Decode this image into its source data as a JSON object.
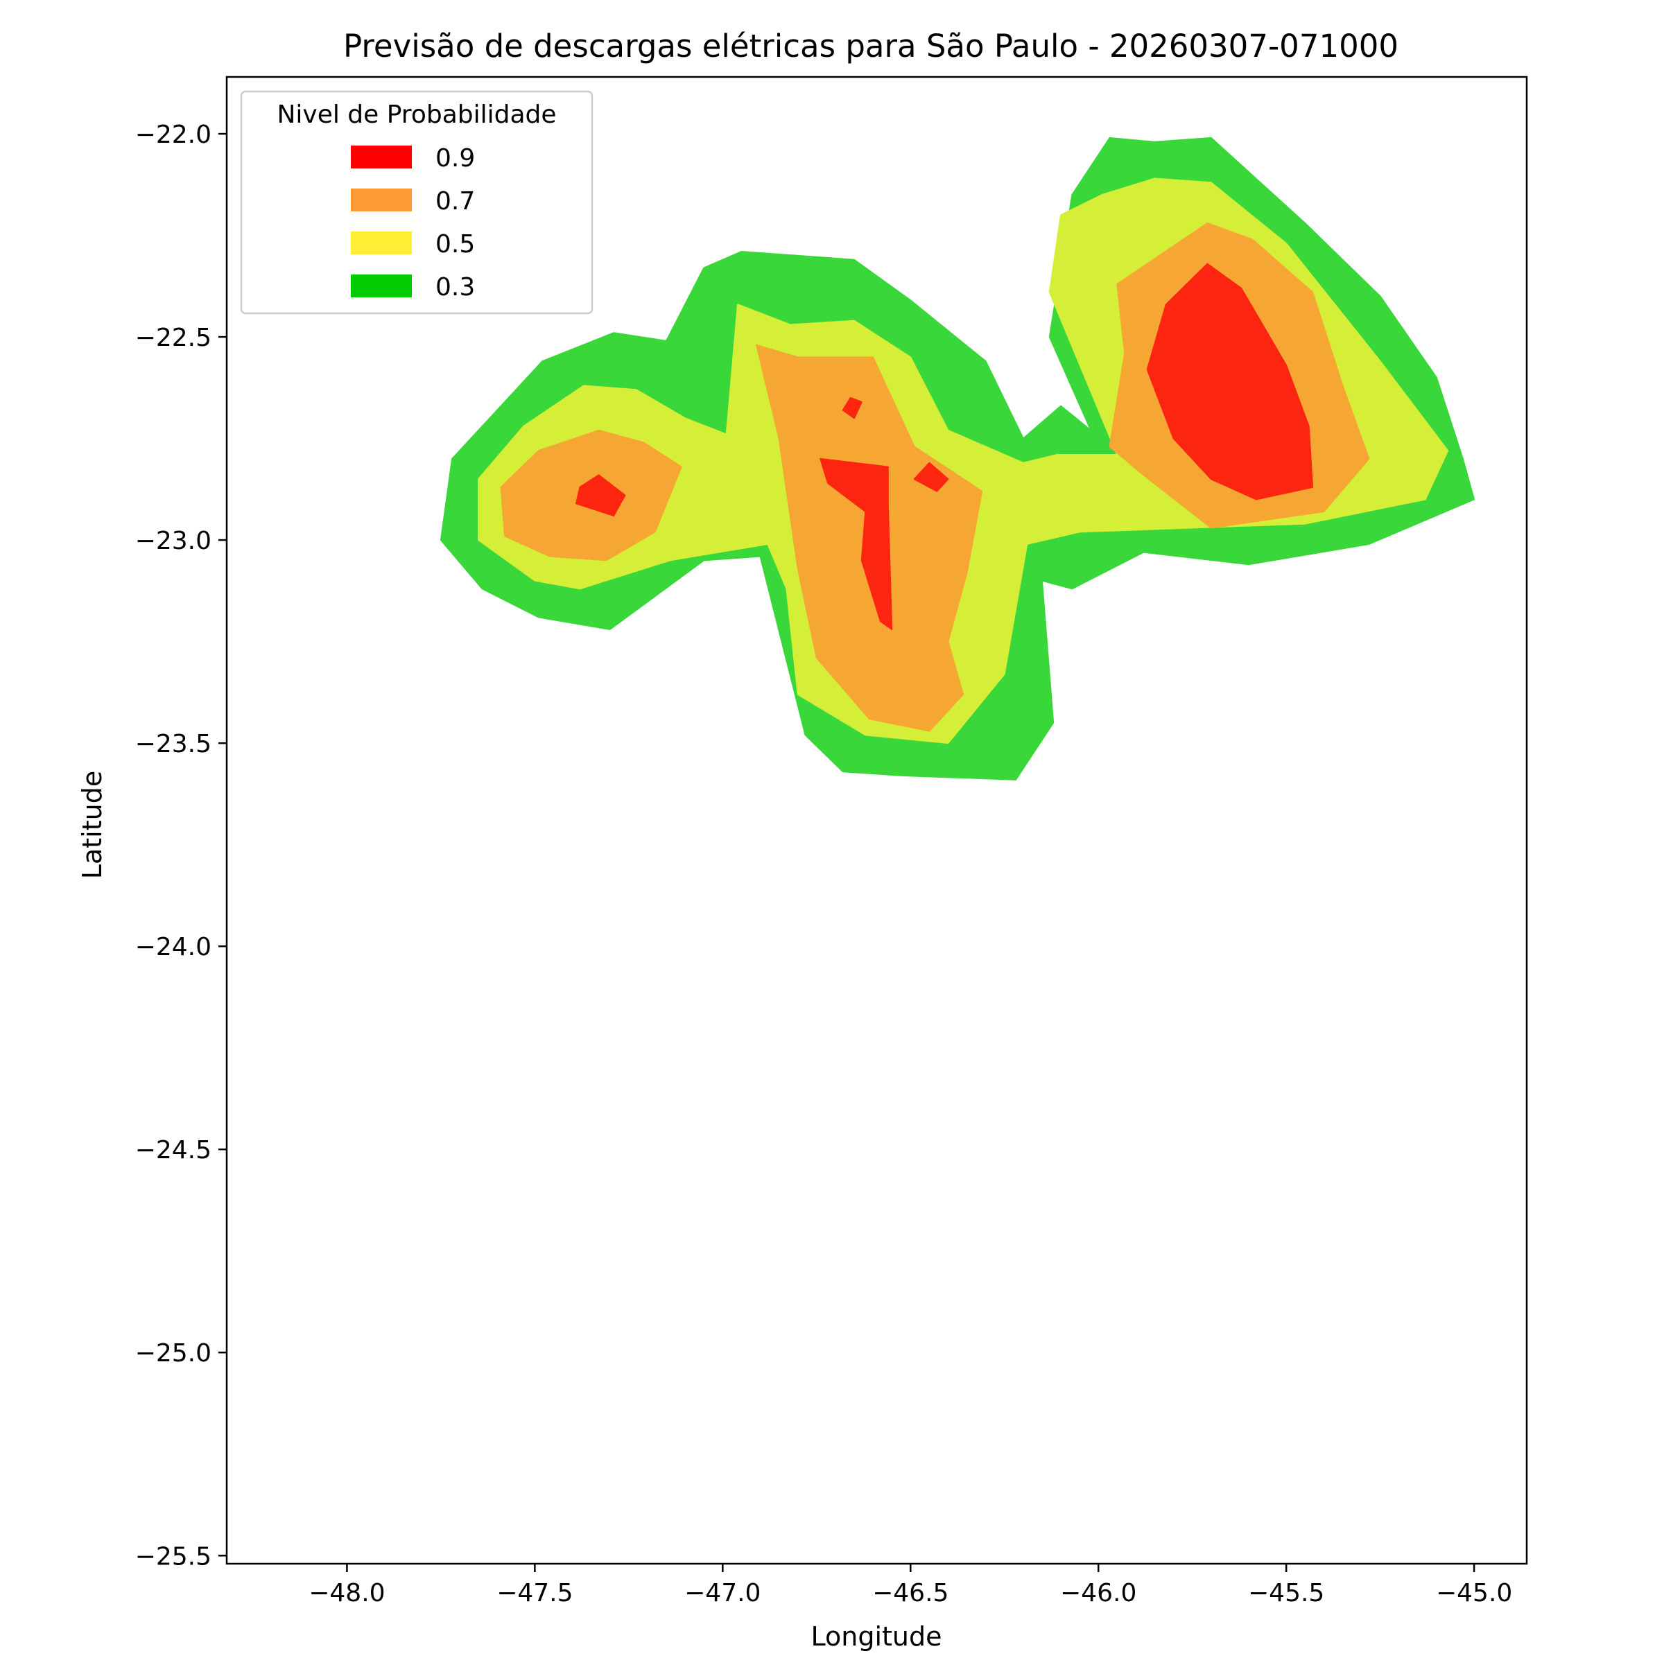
{
  "chart_data": {
    "type": "contour",
    "title": "Previsão de descargas elétricas para São Paulo - 20260307-071000",
    "xlabel": "Longitude",
    "ylabel": "Latitude",
    "xlim": [
      -48.32,
      -44.86
    ],
    "ylim": [
      -25.52,
      -21.86
    ],
    "xticks": [
      -48.0,
      -47.5,
      -47.0,
      -46.5,
      -46.0,
      -45.5,
      -45.0
    ],
    "xtick_labels": [
      "−48.0",
      "−47.5",
      "−47.0",
      "−46.5",
      "−46.0",
      "−45.5",
      "−45.0"
    ],
    "yticks": [
      -22.0,
      -22.5,
      -23.0,
      -23.5,
      -24.0,
      -24.5,
      -25.0,
      -25.5
    ],
    "ytick_labels": [
      "−22.0",
      "−22.5",
      "−23.0",
      "−23.5",
      "−24.0",
      "−24.5",
      "−25.0",
      "−25.5"
    ],
    "grid": false,
    "legend": {
      "title": "Nivel de Probabilidade",
      "placement": "top-left",
      "entries": [
        {
          "label": "0.9",
          "color": "#ff0000"
        },
        {
          "label": "0.7",
          "color": "#ff9933"
        },
        {
          "label": "0.5",
          "color": "#ffee33"
        },
        {
          "label": "0.3",
          "color": "#00cc00"
        }
      ]
    },
    "levels": [
      {
        "level": 0.3,
        "color": "#39d739",
        "regions": [
          [
            [
              -47.29,
              -22.49
            ],
            [
              -47.15,
              -22.51
            ],
            [
              -47.05,
              -22.33
            ],
            [
              -46.95,
              -22.29
            ],
            [
              -46.65,
              -22.31
            ],
            [
              -46.5,
              -22.41
            ],
            [
              -46.3,
              -22.56
            ],
            [
              -46.2,
              -22.75
            ],
            [
              -46.1,
              -22.67
            ],
            [
              -46.02,
              -22.73
            ],
            [
              -46.13,
              -22.5
            ],
            [
              -46.07,
              -22.15
            ],
            [
              -45.97,
              -22.01
            ],
            [
              -45.85,
              -22.02
            ],
            [
              -45.7,
              -22.01
            ],
            [
              -45.45,
              -22.22
            ],
            [
              -45.25,
              -22.4
            ],
            [
              -45.1,
              -22.6
            ],
            [
              -45.03,
              -22.8
            ],
            [
              -45.0,
              -22.9
            ],
            [
              -45.28,
              -23.01
            ],
            [
              -45.6,
              -23.06
            ],
            [
              -45.88,
              -23.03
            ],
            [
              -46.07,
              -23.12
            ],
            [
              -46.15,
              -23.1
            ],
            [
              -46.12,
              -23.45
            ],
            [
              -46.22,
              -23.59
            ],
            [
              -46.52,
              -23.58
            ],
            [
              -46.68,
              -23.57
            ],
            [
              -46.78,
              -23.48
            ],
            [
              -46.9,
              -23.04
            ],
            [
              -47.05,
              -23.05
            ],
            [
              -47.3,
              -23.22
            ],
            [
              -47.49,
              -23.19
            ],
            [
              -47.64,
              -23.12
            ],
            [
              -47.75,
              -23.0
            ],
            [
              -47.72,
              -22.8
            ],
            [
              -47.6,
              -22.68
            ],
            [
              -47.48,
              -22.56
            ]
          ]
        ]
      },
      {
        "level": 0.5,
        "color": "#d5ee37",
        "regions": [
          [
            [
              -47.37,
              -22.62
            ],
            [
              -47.23,
              -22.63
            ],
            [
              -47.1,
              -22.7
            ],
            [
              -46.99,
              -22.74
            ],
            [
              -46.96,
              -22.42
            ],
            [
              -46.82,
              -22.47
            ],
            [
              -46.65,
              -22.46
            ],
            [
              -46.5,
              -22.55
            ],
            [
              -46.4,
              -22.73
            ],
            [
              -46.2,
              -22.81
            ],
            [
              -46.11,
              -22.79
            ],
            [
              -45.95,
              -22.79
            ],
            [
              -46.13,
              -22.39
            ],
            [
              -46.1,
              -22.2
            ],
            [
              -45.99,
              -22.15
            ],
            [
              -45.85,
              -22.11
            ],
            [
              -45.7,
              -22.12
            ],
            [
              -45.5,
              -22.27
            ],
            [
              -45.25,
              -22.56
            ],
            [
              -45.07,
              -22.78
            ],
            [
              -45.13,
              -22.9
            ],
            [
              -45.45,
              -22.96
            ],
            [
              -45.75,
              -22.97
            ],
            [
              -46.05,
              -22.98
            ],
            [
              -46.19,
              -23.01
            ],
            [
              -46.25,
              -23.33
            ],
            [
              -46.4,
              -23.5
            ],
            [
              -46.62,
              -23.48
            ],
            [
              -46.8,
              -23.38
            ],
            [
              -46.83,
              -23.12
            ],
            [
              -46.88,
              -23.01
            ],
            [
              -47.14,
              -23.05
            ],
            [
              -47.38,
              -23.12
            ],
            [
              -47.5,
              -23.1
            ],
            [
              -47.65,
              -23.0
            ],
            [
              -47.65,
              -22.85
            ],
            [
              -47.53,
              -22.72
            ]
          ]
        ]
      },
      {
        "level": 0.7,
        "color": "#f6a733",
        "regions": [
          [
            [
              -47.33,
              -22.73
            ],
            [
              -47.21,
              -22.76
            ],
            [
              -47.11,
              -22.82
            ],
            [
              -47.18,
              -22.98
            ],
            [
              -47.31,
              -23.05
            ],
            [
              -47.46,
              -23.04
            ],
            [
              -47.58,
              -22.99
            ],
            [
              -47.59,
              -22.87
            ],
            [
              -47.49,
              -22.78
            ]
          ],
          [
            [
              -46.91,
              -22.52
            ],
            [
              -46.8,
              -22.55
            ],
            [
              -46.6,
              -22.55
            ],
            [
              -46.49,
              -22.77
            ],
            [
              -46.31,
              -22.88
            ],
            [
              -46.35,
              -23.08
            ],
            [
              -46.4,
              -23.25
            ],
            [
              -46.36,
              -23.38
            ],
            [
              -46.45,
              -23.47
            ],
            [
              -46.61,
              -23.44
            ],
            [
              -46.75,
              -23.29
            ],
            [
              -46.8,
              -23.07
            ],
            [
              -46.85,
              -22.75
            ]
          ],
          [
            [
              -45.71,
              -22.22
            ],
            [
              -45.59,
              -22.26
            ],
            [
              -45.43,
              -22.39
            ],
            [
              -45.35,
              -22.62
            ],
            [
              -45.28,
              -22.8
            ],
            [
              -45.4,
              -22.93
            ],
            [
              -45.7,
              -22.97
            ],
            [
              -45.88,
              -22.84
            ],
            [
              -45.97,
              -22.77
            ],
            [
              -45.93,
              -22.54
            ],
            [
              -45.95,
              -22.37
            ]
          ]
        ]
      },
      {
        "level": 0.9,
        "color": "#fb2510",
        "regions": [
          [
            [
              -47.33,
              -22.84
            ],
            [
              -47.38,
              -22.87
            ],
            [
              -47.39,
              -22.91
            ],
            [
              -47.29,
              -22.94
            ],
            [
              -47.26,
              -22.89
            ]
          ],
          [
            [
              -46.74,
              -22.8
            ],
            [
              -46.56,
              -22.82
            ],
            [
              -46.56,
              -22.91
            ],
            [
              -46.55,
              -23.22
            ],
            [
              -46.58,
              -23.2
            ],
            [
              -46.63,
              -23.05
            ],
            [
              -46.62,
              -22.93
            ],
            [
              -46.72,
              -22.86
            ]
          ],
          [
            [
              -46.45,
              -22.81
            ],
            [
              -46.4,
              -22.85
            ],
            [
              -46.43,
              -22.88
            ],
            [
              -46.49,
              -22.85
            ]
          ],
          [
            [
              -45.71,
              -22.32
            ],
            [
              -45.62,
              -22.38
            ],
            [
              -45.5,
              -22.57
            ],
            [
              -45.44,
              -22.72
            ],
            [
              -45.43,
              -22.87
            ],
            [
              -45.58,
              -22.9
            ],
            [
              -45.7,
              -22.85
            ],
            [
              -45.8,
              -22.75
            ],
            [
              -45.87,
              -22.58
            ],
            [
              -45.82,
              -22.42
            ]
          ],
          [
            [
              -46.66,
              -22.65
            ],
            [
              -46.63,
              -22.66
            ],
            [
              -46.65,
              -22.7
            ],
            [
              -46.68,
              -22.68
            ]
          ]
        ]
      }
    ]
  }
}
